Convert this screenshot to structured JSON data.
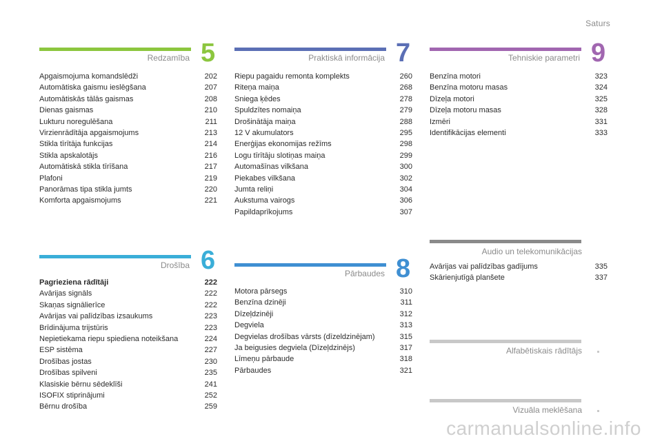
{
  "header": {
    "contents_link": "Saturs"
  },
  "sections": {
    "s5": {
      "title": "Redzamība",
      "number": "5",
      "color": "#8cc63f",
      "entries": [
        {
          "title": "Apgaismojuma komandslēdži",
          "page": "202"
        },
        {
          "title": "Automātiska gaismu ieslēgšana",
          "page": "207"
        },
        {
          "title": "Automātiskās tālās gaismas",
          "page": "208"
        },
        {
          "title": "Dienas gaismas",
          "page": "210"
        },
        {
          "title": "Lukturu noregulēšana",
          "page": "211"
        },
        {
          "title": "Virzienrādītāja apgaismojums",
          "page": "213"
        },
        {
          "title": "Stikla tīrītāja funkcijas",
          "page": "214"
        },
        {
          "title": "Stikla apskalotājs",
          "page": "216"
        },
        {
          "title": "Automātiskā stikla tīrīšana",
          "page": "217"
        },
        {
          "title": "Plafoni",
          "page": "219"
        },
        {
          "title": "Panorāmas tipa stikla jumts",
          "page": "220"
        },
        {
          "title": "Komforta apgaismojums",
          "page": "221"
        }
      ]
    },
    "s7": {
      "title": "Praktiskā informācija",
      "number": "7",
      "color": "#5b6fb5",
      "entries": [
        {
          "title": "Riepu pagaidu remonta komplekts",
          "page": "260"
        },
        {
          "title": "Riteņa maiņa",
          "page": "268"
        },
        {
          "title": "Sniega ķēdes",
          "page": "278"
        },
        {
          "title": "Spuldzītes nomaiņa",
          "page": "279"
        },
        {
          "title": "Drošinātāja maiņa",
          "page": "288"
        },
        {
          "title": "12 V akumulators",
          "page": "295"
        },
        {
          "title": "Enerģijas ekonomijas režīms",
          "page": "298"
        },
        {
          "title": "Logu tīrītāju slotiņas maiņa",
          "page": "299"
        },
        {
          "title": "Automašīnas vilkšana",
          "page": "300"
        },
        {
          "title": "Piekabes vilkšana",
          "page": "302"
        },
        {
          "title": "Jumta reliņi",
          "page": "304"
        },
        {
          "title": "Aukstuma vairogs",
          "page": "306"
        },
        {
          "title": "Papildaprīkojums",
          "page": "307"
        }
      ]
    },
    "s9": {
      "title": "Tehniskie parametri",
      "number": "9",
      "color": "#a166b0",
      "entries": [
        {
          "title": "Benzīna motori",
          "page": "323"
        },
        {
          "title": "Benzīna motoru masas",
          "page": "324"
        },
        {
          "title": "Dīzeļa motori",
          "page": "325"
        },
        {
          "title": "Dīzeļa motoru masas",
          "page": "328"
        },
        {
          "title": "Izmēri",
          "page": "331"
        },
        {
          "title": "Identifikācijas elementi",
          "page": "333"
        }
      ]
    },
    "s6": {
      "title": "Drošība",
      "number": "6",
      "color": "#3aaed8",
      "entries": [
        {
          "title": "Pagrieziena rādītāji",
          "page": "222",
          "bold": true
        },
        {
          "title": "Avārijas signāls",
          "page": "222"
        },
        {
          "title": "Skaņas signālierīce",
          "page": "222"
        },
        {
          "title": "Avārijas vai palīdzības izsaukums",
          "page": "223"
        },
        {
          "title": "Brīdinājuma trijstūris",
          "page": "223"
        },
        {
          "title": "Nepietiekama riepu spiediena noteikšana",
          "page": "224"
        },
        {
          "title": "ESP sistēma",
          "page": "227"
        },
        {
          "title": "Drošības jostas",
          "page": "230"
        },
        {
          "title": "Drošības spilveni",
          "page": "235"
        },
        {
          "title": "Klasiskie bērnu sēdeklīši",
          "page": "241"
        },
        {
          "title": "ISOFIX stiprinājumi",
          "page": "252"
        },
        {
          "title": "Bērnu drošība",
          "page": "259"
        }
      ]
    },
    "s8": {
      "title": "Pārbaudes",
      "number": "8",
      "color": "#3f8fd2",
      "entries": [
        {
          "title": "Motora pārsegs",
          "page": "310"
        },
        {
          "title": "Benzīna dzinēji",
          "page": "311"
        },
        {
          "title": "Dīzeļdzinēji",
          "page": "312"
        },
        {
          "title": "Degviela",
          "page": "313"
        },
        {
          "title": "Degvielas drošības vārsts (dīzeldzinējam)",
          "page": "315"
        },
        {
          "title": "Ja beigusies degviela (Dīzeļdzinējs)",
          "page": "317"
        },
        {
          "title": "Līmeņu pārbaude",
          "page": "318"
        },
        {
          "title": "Pārbaudes",
          "page": "321"
        }
      ]
    },
    "audio": {
      "title": "Audio un telekomunikācijas",
      "color": "#8a8a8a",
      "entries": [
        {
          "title": "Avārijas vai palīdzības gadījums",
          "page": "335"
        },
        {
          "title": "Skārienjutīgā planšete",
          "page": "337"
        }
      ]
    },
    "alpha": {
      "title": "Alfabētiskais rādītājs"
    },
    "visual": {
      "title": "Vizuāla meklēšana"
    }
  },
  "watermark": "carmanualsonline.info"
}
